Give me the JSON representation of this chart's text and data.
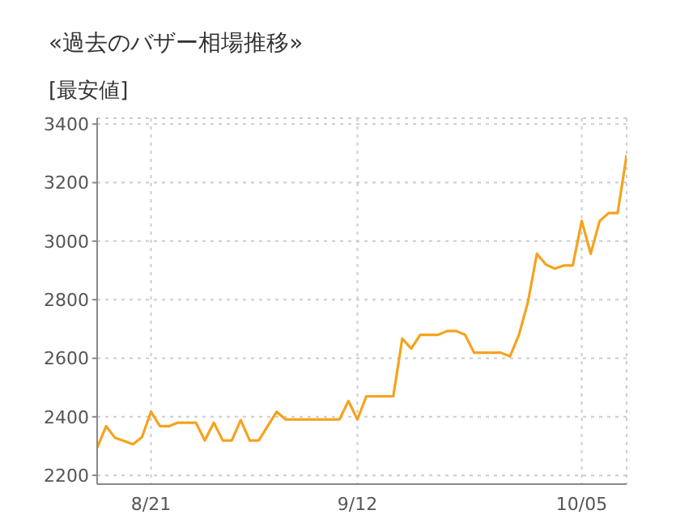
{
  "chart_data": {
    "type": "line",
    "title": "«過去のバザー相場推移»",
    "ylabel": "[最安値]",
    "categories": [
      null,
      null,
      null,
      null,
      null,
      null,
      "8/21",
      null,
      null,
      null,
      null,
      null,
      null,
      null,
      null,
      null,
      null,
      null,
      null,
      null,
      null,
      null,
      null,
      null,
      null,
      null,
      null,
      null,
      null,
      "9/12",
      null,
      null,
      null,
      null,
      null,
      null,
      null,
      null,
      null,
      null,
      null,
      null,
      null,
      null,
      null,
      null,
      null,
      null,
      null,
      null,
      null,
      null,
      null,
      null,
      "10/05",
      null,
      null,
      null,
      null,
      null
    ],
    "series": [
      {
        "color": "#f5a31e",
        "values": [
          2294,
          2368,
          2328,
          2317,
          2306,
          2331,
          2417,
          2368,
          2368,
          2380,
          2380,
          2380,
          2319,
          2380,
          2319,
          2319,
          2389,
          2319,
          2319,
          2368,
          2417,
          2391,
          2391,
          2391,
          2391,
          2391,
          2391,
          2391,
          2454,
          2391,
          2470,
          2470,
          2470,
          2470,
          2667,
          2633,
          2680,
          2680,
          2680,
          2693,
          2693,
          2680,
          2619,
          2619,
          2619,
          2619,
          2606,
          2680,
          2791,
          2957,
          2920,
          2906,
          2917,
          2917,
          3069,
          2957,
          3069,
          3096,
          3096,
          3294
        ]
      }
    ],
    "ylim": [
      2170,
      3420
    ],
    "yticks": [
      2200,
      2400,
      2600,
      2800,
      3000,
      3200,
      3400
    ],
    "grid": true,
    "marker": "none",
    "line_style": "solid"
  }
}
